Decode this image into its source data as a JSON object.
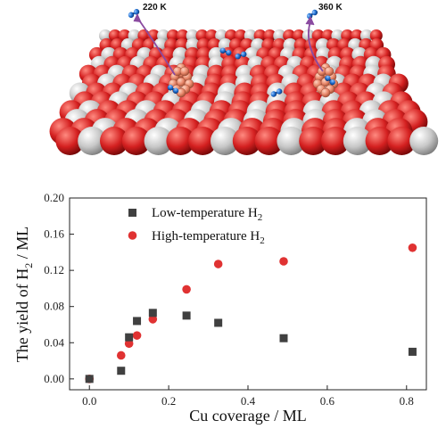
{
  "illustration": {
    "annotations": [
      "220 K",
      "360 K"
    ],
    "colors": {
      "oxygen": "#d42020",
      "cerium": "#c8c8c8",
      "copper": "#e8876a",
      "hydrogen": "#1e6fd0",
      "arrow": "#8a4aa0"
    }
  },
  "chart_data": {
    "type": "scatter",
    "xlabel": "Cu coverage / ML",
    "ylabel": {
      "main": "The yield of H",
      "sub": "2",
      "tail": " / ML"
    },
    "xlim": [
      -0.05,
      0.85
    ],
    "ylim": [
      -0.012,
      0.2
    ],
    "xticks": [
      "0.0",
      "0.2",
      "0.4",
      "0.6",
      "0.8"
    ],
    "yticks": [
      "0.00",
      "0.04",
      "0.08",
      "0.12",
      "0.16",
      "0.20"
    ],
    "xtick_values": [
      0.0,
      0.2,
      0.4,
      0.6,
      0.8
    ],
    "ytick_values": [
      0.0,
      0.04,
      0.08,
      0.12,
      0.16,
      0.2
    ],
    "legend_position": "top-left",
    "grid": false,
    "series": [
      {
        "name": "Low-temperature H",
        "name_sub": "2",
        "marker": "square",
        "color": "#404040",
        "x": [
          0.0,
          0.08,
          0.1,
          0.12,
          0.16,
          0.245,
          0.325,
          0.49,
          0.815
        ],
        "y": [
          0.0,
          0.009,
          0.046,
          0.064,
          0.073,
          0.07,
          0.062,
          0.045,
          0.03
        ]
      },
      {
        "name": "High-temperature H",
        "name_sub": "2",
        "marker": "circle",
        "color": "#e03232",
        "x": [
          0.0,
          0.08,
          0.1,
          0.12,
          0.16,
          0.245,
          0.325,
          0.49,
          0.815
        ],
        "y": [
          0.0,
          0.026,
          0.039,
          0.048,
          0.066,
          0.099,
          0.127,
          0.13,
          0.145
        ]
      }
    ]
  }
}
